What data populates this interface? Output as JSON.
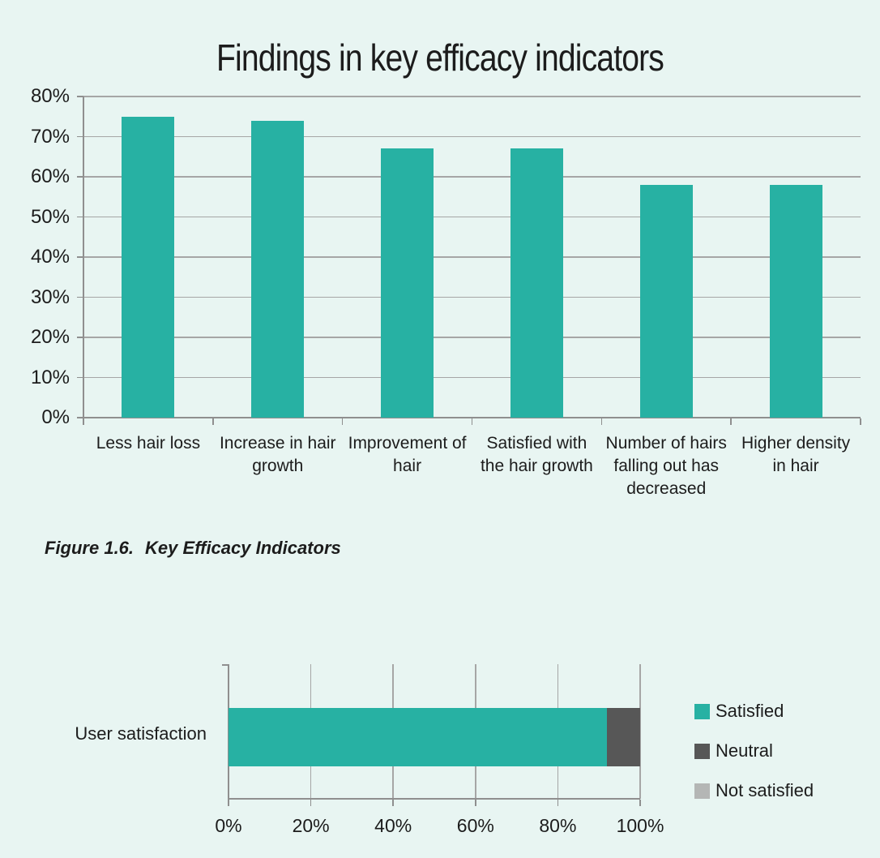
{
  "page": {
    "background": "#e8f5f2",
    "text_color": "#1c1c1c",
    "gridline_color": "#a6a6a6",
    "axis_color": "#8f8f8f"
  },
  "caption": {
    "label": "Figure 1.6.",
    "title": "Key Efficacy Indicators"
  },
  "chart_data": [
    {
      "type": "bar",
      "title": "Findings in key efficacy indicators",
      "categories": [
        "Less hair loss",
        "Increase in hair growth",
        "Improvement of hair",
        "Satisfied with the hair growth",
        "Number of hairs falling out has decreased",
        "Higher density in hair"
      ],
      "values": [
        75,
        74,
        67,
        67,
        58,
        58
      ],
      "value_unit": "%",
      "bar_color": "#27b1a3",
      "ylim": [
        0,
        80
      ],
      "ytick_step": 10,
      "ytick_labels": [
        "0%",
        "10%",
        "20%",
        "30%",
        "40%",
        "50%",
        "60%",
        "70%",
        "80%"
      ],
      "grid": true,
      "legend_position": "none"
    },
    {
      "type": "bar",
      "orientation": "horizontal",
      "stacked": true,
      "categories": [
        "User satisfaction"
      ],
      "series": [
        {
          "name": "Satisfied",
          "values": [
            92
          ],
          "color": "#27b1a3"
        },
        {
          "name": "Neutral",
          "values": [
            8
          ],
          "color": "#575757"
        },
        {
          "name": "Not satisfied",
          "values": [
            0
          ],
          "color": "#b4b6b5"
        }
      ],
      "xlim": [
        0,
        100
      ],
      "xtick_step": 20,
      "xtick_labels": [
        "0%",
        "20%",
        "40%",
        "60%",
        "80%",
        "100%"
      ],
      "grid": true,
      "legend_position": "right"
    }
  ]
}
